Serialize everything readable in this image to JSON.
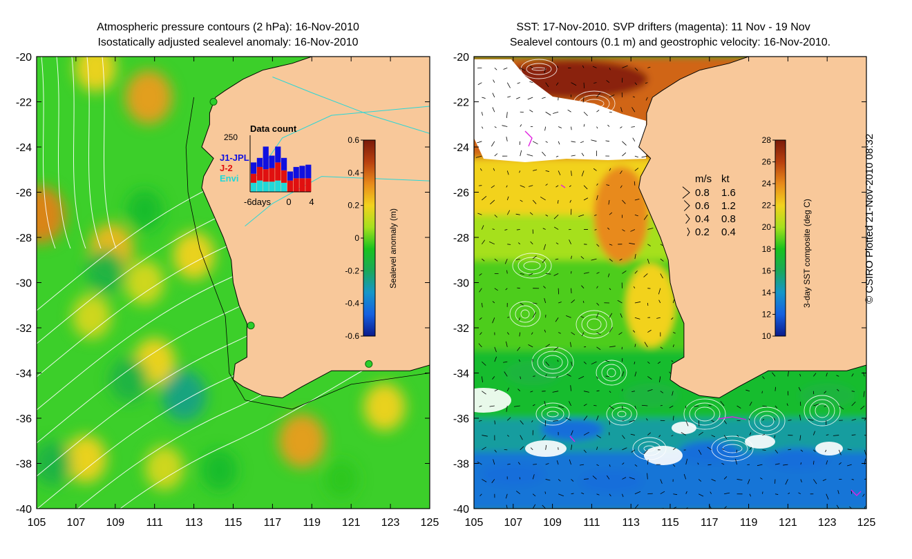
{
  "left_panel": {
    "title_line1": "Atmospheric pressure contours (2 hPa): 16-Nov-2010",
    "title_line2": "Isostatically adjusted sealevel anomaly: 16-Nov-2010",
    "inset": {
      "title": "Data count",
      "ymax_label": "250",
      "legend": [
        {
          "label": "J1-JPL",
          "color": "#1010e0"
        },
        {
          "label": "J-2",
          "color": "#e01010"
        },
        {
          "label": "Envi",
          "color": "#20d8d8"
        }
      ],
      "xticks": [
        "-6days",
        "0",
        "4"
      ],
      "bars": [
        {
          "day": -6,
          "envi": 40,
          "j2": 40,
          "j1": 50
        },
        {
          "day": -5,
          "envi": 50,
          "j2": 60,
          "j1": 40
        },
        {
          "day": -4,
          "envi": 45,
          "j2": 55,
          "j1": 100
        },
        {
          "day": -3,
          "envi": 45,
          "j2": 60,
          "j1": 55
        },
        {
          "day": -2,
          "envi": 50,
          "j2": 80,
          "j1": 70
        },
        {
          "day": -1,
          "envi": 40,
          "j2": 55,
          "j1": 55
        },
        {
          "day": 0,
          "envi": 0,
          "j2": 50,
          "j1": 40
        },
        {
          "day": 1,
          "envi": 0,
          "j2": 60,
          "j1": 50
        },
        {
          "day": 2,
          "envi": 0,
          "j2": 60,
          "j1": 55
        },
        {
          "day": 3,
          "envi": 0,
          "j2": 60,
          "j1": 60
        }
      ]
    },
    "colorbar": {
      "label": "Sealevel anomaly (m)",
      "ticks": [
        "0.6",
        "0.4",
        "0.2",
        "0",
        "-0.2",
        "-0.4",
        "-0.6"
      ],
      "stops": [
        "#7a1a0a",
        "#b8400f",
        "#e88a1a",
        "#f2d21e",
        "#a6e01e",
        "#19c21e",
        "#1aa85a",
        "#1596c8",
        "#1560e0",
        "#0a1a8a"
      ]
    }
  },
  "right_panel": {
    "title_line1": "SST: 17-Nov-2010. SVP drifters (magenta): 11 Nov - 19 Nov",
    "title_line2": "Sealevel contours (0.1 m) and geostrophic velocity: 16-Nov-2010.",
    "velocity_legend": {
      "header_ms": "m/s",
      "header_kt": "kt",
      "rows": [
        {
          "ms": "0.8",
          "kt": "1.6"
        },
        {
          "ms": "0.6",
          "kt": "1.2"
        },
        {
          "ms": "0.4",
          "kt": "0.8"
        },
        {
          "ms": "0.2",
          "kt": "0.4"
        }
      ]
    },
    "colorbar": {
      "label": "3-day SST composite (deg C)",
      "ticks": [
        "28",
        "26",
        "24",
        "22",
        "20",
        "18",
        "16",
        "14",
        "12",
        "10"
      ],
      "stops": [
        "#7a1a0a",
        "#b8400f",
        "#e88a1a",
        "#f2d21e",
        "#a6e01e",
        "#19c21e",
        "#1aa85a",
        "#1596c8",
        "#1560e0",
        "#0a1a8a"
      ]
    }
  },
  "axes": {
    "y_ticks": [
      "-20",
      "-22",
      "-24",
      "-26",
      "-28",
      "-30",
      "-32",
      "-34",
      "-36",
      "-38",
      "-40"
    ],
    "x_ticks": [
      "105",
      "107",
      "109",
      "111",
      "113",
      "115",
      "117",
      "119",
      "121",
      "123",
      "125"
    ]
  },
  "credit": "© CSIRO Plotted 21-Nov-2010 08:32",
  "colors": {
    "land": "#f8c89a",
    "contour": "#ffffff",
    "coast": "#000000"
  },
  "chart_data": [
    {
      "type": "heatmap",
      "title": "Atmospheric pressure contours (2 hPa): 16-Nov-2010 / Isostatically adjusted sealevel anomaly: 16-Nov-2010",
      "xlabel": "",
      "ylabel": "",
      "xlim": [
        105,
        125
      ],
      "ylim": [
        -40,
        -20
      ],
      "colorbar_label": "Sealevel anomaly (m)",
      "value_range": [
        -0.6,
        0.6
      ],
      "anomaly_blobs": [
        {
          "lon": 110.7,
          "lat": -21.8,
          "value": 0.3
        },
        {
          "lon": 108.0,
          "lat": -20.5,
          "value": 0.2
        },
        {
          "lon": 105.2,
          "lat": -27.0,
          "value": 0.35
        },
        {
          "lon": 108.8,
          "lat": -28.5,
          "value": 0.25
        },
        {
          "lon": 110.5,
          "lat": -30.0,
          "value": 0.15
        },
        {
          "lon": 113.0,
          "lat": -28.8,
          "value": 0.2
        },
        {
          "lon": 111.0,
          "lat": -33.5,
          "value": 0.2
        },
        {
          "lon": 107.8,
          "lat": -31.5,
          "value": 0.15
        },
        {
          "lon": 118.5,
          "lat": -37.0,
          "value": 0.3
        },
        {
          "lon": 122.7,
          "lat": -35.5,
          "value": 0.2
        },
        {
          "lon": 107.5,
          "lat": -37.8,
          "value": 0.2
        },
        {
          "lon": 111.5,
          "lat": -38.2,
          "value": 0.15
        },
        {
          "lon": 112.5,
          "lat": -35.0,
          "value": -0.25
        },
        {
          "lon": 108.5,
          "lat": -29.5,
          "value": -0.15
        },
        {
          "lon": 110.5,
          "lat": -26.8,
          "value": -0.1
        },
        {
          "lon": 109.7,
          "lat": -34.3,
          "value": -0.15
        },
        {
          "lon": 105.8,
          "lat": -38.0,
          "value": -0.15
        },
        {
          "lon": 114.3,
          "lat": -38.3,
          "value": -0.1
        },
        {
          "lon": 120.5,
          "lat": -38.7,
          "value": -0.05
        }
      ]
    },
    {
      "type": "heatmap",
      "title": "SST: 17-Nov-2010. SVP drifters (magenta): 11 Nov - 19 Nov / Sealevel contours (0.1 m) and geostrophic velocity: 16-Nov-2010.",
      "xlabel": "",
      "ylabel": "",
      "xlim": [
        105,
        125
      ],
      "ylim": [
        -40,
        -20
      ],
      "colorbar_label": "3-day SST composite (deg C)",
      "value_range": [
        10,
        28
      ],
      "sst_bands": [
        {
          "lat": -20,
          "lon_from": 108,
          "value": 27
        },
        {
          "lat": -24.5,
          "value": 23
        },
        {
          "lat": -27,
          "value": 21
        },
        {
          "lat": -29,
          "value": 19
        },
        {
          "lat": -33,
          "value": 18.5
        },
        {
          "lat": -36,
          "value": 16.5
        },
        {
          "lat": -37.5,
          "value": 13
        },
        {
          "lat": -40,
          "value": 12.5
        }
      ]
    }
  ]
}
